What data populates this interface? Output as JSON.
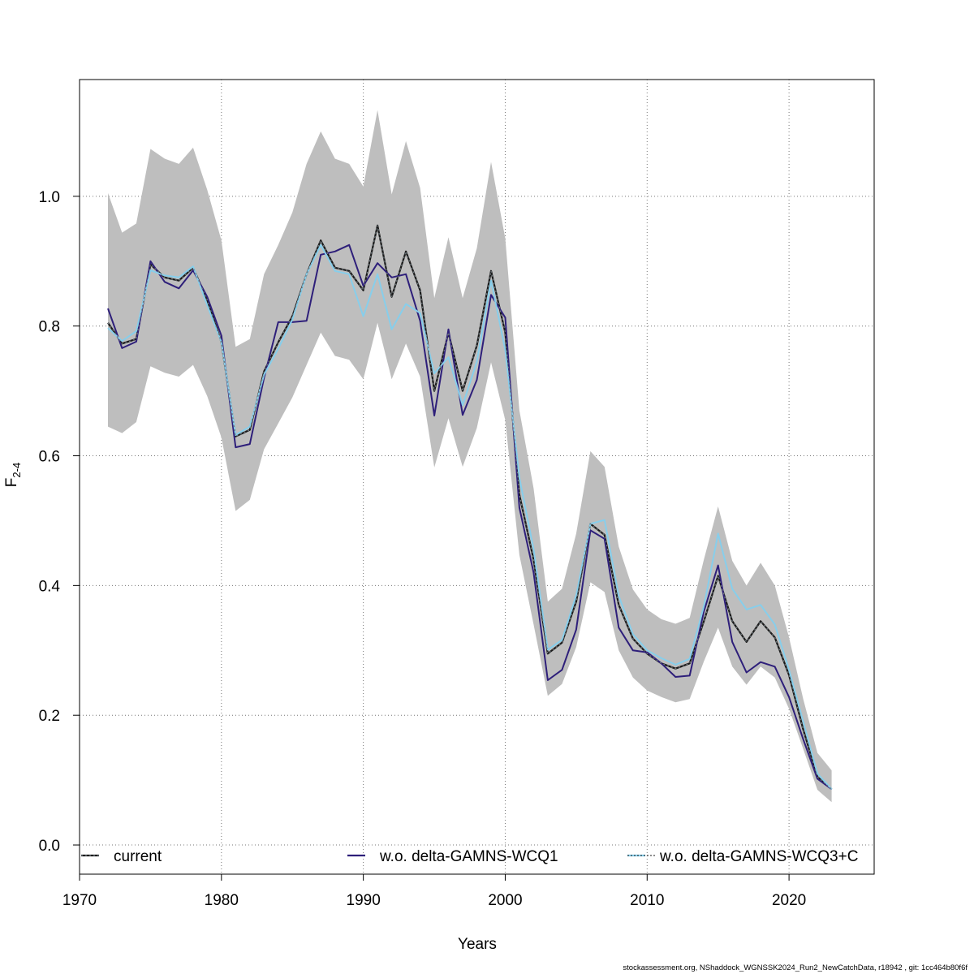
{
  "chart_data": {
    "type": "line",
    "title": "",
    "xlabel": "Years",
    "ylabel": "F",
    "ylabel_subscript": "2-4",
    "xlim": [
      1970,
      2026
    ],
    "ylim": [
      -0.045,
      1.18
    ],
    "xticks": [
      1970,
      1980,
      1990,
      2000,
      2010,
      2020
    ],
    "yticks": [
      0.0,
      0.2,
      0.4,
      0.6,
      0.8,
      1.0
    ],
    "xtick_labels": [
      "1970",
      "1980",
      "1990",
      "2000",
      "2010",
      "2020"
    ],
    "ytick_labels": [
      "0.0",
      "0.2",
      "0.4",
      "0.6",
      "0.8",
      "1.0"
    ],
    "grid": true,
    "legend_position": "bottom",
    "x": [
      1972,
      1973,
      1974,
      1975,
      1976,
      1977,
      1978,
      1979,
      1980,
      1981,
      1982,
      1983,
      1984,
      1985,
      1986,
      1987,
      1988,
      1989,
      1990,
      1991,
      1992,
      1993,
      1994,
      1995,
      1996,
      1997,
      1998,
      1999,
      2000,
      2001,
      2002,
      2003,
      2004,
      2005,
      2006,
      2007,
      2008,
      2009,
      2010,
      2011,
      2012,
      2013,
      2014,
      2015,
      2016,
      2017,
      2018,
      2019,
      2020,
      2021,
      2022,
      2023
    ],
    "band": {
      "color": "#bebebe",
      "lower": [
        0.645,
        0.635,
        0.652,
        0.738,
        0.728,
        0.722,
        0.74,
        0.692,
        0.628,
        0.515,
        0.532,
        0.61,
        0.65,
        0.69,
        0.74,
        0.79,
        0.754,
        0.748,
        0.718,
        0.805,
        0.718,
        0.773,
        0.722,
        0.582,
        0.658,
        0.583,
        0.643,
        0.744,
        0.655,
        0.447,
        0.34,
        0.23,
        0.248,
        0.305,
        0.405,
        0.39,
        0.3,
        0.258,
        0.238,
        0.228,
        0.22,
        0.225,
        0.283,
        0.335,
        0.275,
        0.247,
        0.275,
        0.258,
        0.21,
        0.148,
        0.085,
        0.066
      ],
      "upper": [
        1.005,
        0.944,
        0.958,
        1.073,
        1.058,
        1.05,
        1.075,
        1.01,
        0.932,
        0.768,
        0.78,
        0.88,
        0.925,
        0.975,
        1.05,
        1.1,
        1.058,
        1.05,
        1.015,
        1.133,
        1.003,
        1.085,
        1.013,
        0.843,
        0.937,
        0.843,
        0.92,
        1.053,
        0.935,
        0.67,
        0.55,
        0.375,
        0.395,
        0.48,
        0.607,
        0.583,
        0.46,
        0.394,
        0.363,
        0.348,
        0.341,
        0.35,
        0.44,
        0.522,
        0.438,
        0.4,
        0.435,
        0.4,
        0.32,
        0.225,
        0.142,
        0.115
      ]
    },
    "series": [
      {
        "name": "current",
        "color": "#1a1a1a",
        "style": "solid",
        "values": [
          0.805,
          0.773,
          0.78,
          0.895,
          0.875,
          0.87,
          0.89,
          0.84,
          0.775,
          0.63,
          0.64,
          0.73,
          0.775,
          0.815,
          0.88,
          0.932,
          0.89,
          0.885,
          0.855,
          0.955,
          0.845,
          0.915,
          0.855,
          0.7,
          0.79,
          0.7,
          0.77,
          0.885,
          0.79,
          0.54,
          0.44,
          0.295,
          0.312,
          0.375,
          0.495,
          0.478,
          0.37,
          0.318,
          0.295,
          0.28,
          0.272,
          0.28,
          0.345,
          0.415,
          0.345,
          0.313,
          0.345,
          0.32,
          0.262,
          0.178,
          0.105,
          0.086
        ]
      },
      {
        "name": "w.o. delta-GAMNS-WCQ1",
        "color": "#2e1f7a",
        "style": "solid",
        "values": [
          0.827,
          0.766,
          0.776,
          0.9,
          0.868,
          0.858,
          0.886,
          0.845,
          0.785,
          0.613,
          0.618,
          0.72,
          0.806,
          0.806,
          0.808,
          0.91,
          0.915,
          0.925,
          0.862,
          0.897,
          0.875,
          0.88,
          0.808,
          0.662,
          0.795,
          0.663,
          0.717,
          0.848,
          0.813,
          0.52,
          0.42,
          0.254,
          0.27,
          0.332,
          0.485,
          0.472,
          0.335,
          0.3,
          0.297,
          0.28,
          0.259,
          0.261,
          0.36,
          0.431,
          0.313,
          0.266,
          0.282,
          0.275,
          0.228,
          0.163,
          0.102,
          0.086
        ]
      },
      {
        "name": "w.o. delta-GAMNS-WCQ3+C",
        "color": "#87ceeb",
        "style": "solid",
        "values": [
          0.797,
          0.777,
          0.792,
          0.886,
          0.878,
          0.875,
          0.892,
          0.832,
          0.775,
          0.632,
          0.645,
          0.725,
          0.765,
          0.81,
          0.88,
          0.925,
          0.885,
          0.88,
          0.815,
          0.88,
          0.795,
          0.834,
          0.82,
          0.727,
          0.752,
          0.678,
          0.745,
          0.87,
          0.763,
          0.566,
          0.456,
          0.301,
          0.316,
          0.385,
          0.495,
          0.501,
          0.384,
          0.325,
          0.3,
          0.288,
          0.278,
          0.287,
          0.368,
          0.48,
          0.395,
          0.363,
          0.37,
          0.34,
          0.27,
          0.19,
          0.11,
          0.086
        ]
      }
    ]
  },
  "footer": {
    "text": "stockassessment.org, NShaddock_WGNSSK2024_Run2_NewCatchData, r18942 , git: 1cc464b80f6f"
  }
}
